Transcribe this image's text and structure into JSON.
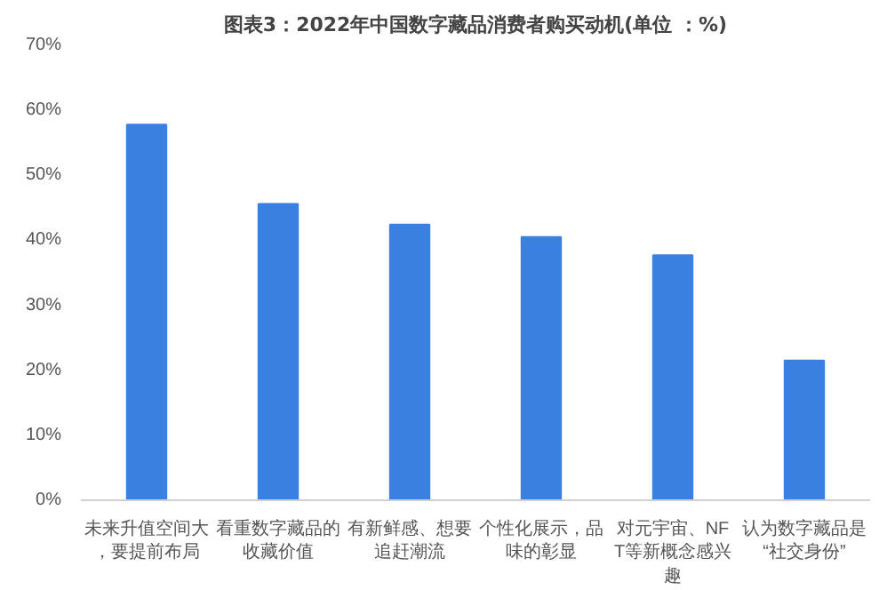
{
  "chart_data": {
    "type": "bar",
    "title": "图表3：2022年中国数字藏品消费者购买动机(单位 ：%)",
    "categories": [
      "未来升值空间大，要提前布局",
      "看重数字藏品的收藏价值",
      "有新鲜感、想要追赶潮流",
      "个性化展示，品味的彰显",
      "对元宇宙、NFT等新概念感兴趣",
      "认为数字藏品是“社交身份”"
    ],
    "values": [
      57.8,
      45.6,
      42.4,
      40.5,
      37.7,
      21.5
    ],
    "color": "#3a80e0",
    "ylim": [
      0,
      70
    ],
    "yticks": [
      {
        "value": 0,
        "label": "0%"
      },
      {
        "value": 10,
        "label": "10%"
      },
      {
        "value": 20,
        "label": "20%"
      },
      {
        "value": 30,
        "label": "30%"
      },
      {
        "value": 40,
        "label": "40%"
      },
      {
        "value": 50,
        "label": "50%"
      },
      {
        "value": 60,
        "label": "60%"
      },
      {
        "value": 70,
        "label": "70%"
      }
    ],
    "grid": false
  }
}
